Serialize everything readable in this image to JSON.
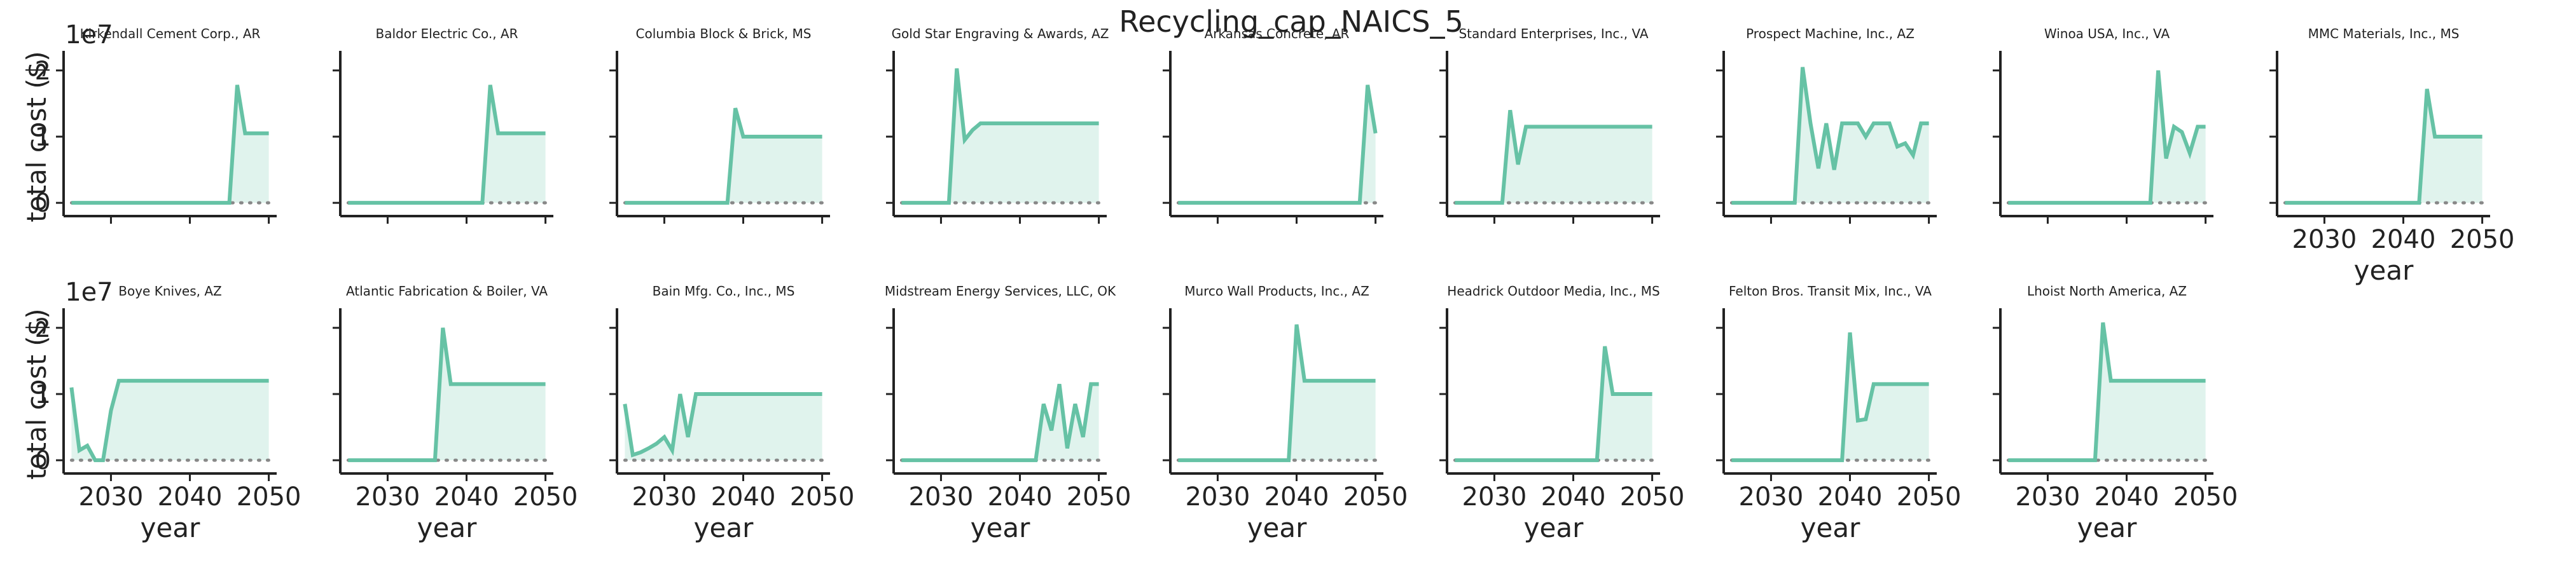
{
  "suptitle": "Recycling_cap_NAICS_5",
  "common": {
    "xlabel": "year",
    "ylabel": "total cost ($)",
    "xlim": [
      2024,
      2051
    ],
    "ylim": [
      -2000000,
      22000000
    ],
    "xticks": [
      "2030",
      "2040",
      "2050"
    ],
    "yticks": [
      "0",
      "1",
      "2"
    ],
    "offset_text": "1e7",
    "color": "#66c2a5",
    "zero_line_color": "#888888"
  },
  "chart_data": [
    {
      "type": "area",
      "title": "Kirkendall Cement Corp., AR",
      "x": [
        2025,
        2026,
        2027,
        2028,
        2029,
        2030,
        2031,
        2032,
        2033,
        2034,
        2035,
        2036,
        2037,
        2038,
        2039,
        2040,
        2041,
        2042,
        2043,
        2044,
        2045,
        2046,
        2047,
        2048,
        2049,
        2050
      ],
      "y": [
        0,
        0,
        0,
        0,
        0,
        0,
        0,
        0,
        0,
        0,
        0,
        0,
        0,
        0,
        0,
        0,
        0,
        0,
        0,
        0,
        0,
        17800000,
        10500000,
        10500000,
        10500000,
        10500000
      ]
    },
    {
      "type": "area",
      "title": "Baldor Electric Co., AR",
      "x": [
        2025,
        2026,
        2027,
        2028,
        2029,
        2030,
        2031,
        2032,
        2033,
        2034,
        2035,
        2036,
        2037,
        2038,
        2039,
        2040,
        2041,
        2042,
        2043,
        2044,
        2045,
        2046,
        2047,
        2048,
        2049,
        2050
      ],
      "y": [
        0,
        0,
        0,
        0,
        0,
        0,
        0,
        0,
        0,
        0,
        0,
        0,
        0,
        0,
        0,
        0,
        0,
        0,
        17800000,
        10500000,
        10500000,
        10500000,
        10500000,
        10500000,
        10500000,
        10500000
      ]
    },
    {
      "type": "area",
      "title": "Columbia Block & Brick, MS",
      "x": [
        2025,
        2026,
        2027,
        2028,
        2029,
        2030,
        2031,
        2032,
        2033,
        2034,
        2035,
        2036,
        2037,
        2038,
        2039,
        2040,
        2041,
        2042,
        2043,
        2044,
        2045,
        2046,
        2047,
        2048,
        2049,
        2050
      ],
      "y": [
        0,
        0,
        0,
        0,
        0,
        0,
        0,
        0,
        0,
        0,
        0,
        0,
        0,
        0,
        14300000,
        10000000,
        10000000,
        10000000,
        10000000,
        10000000,
        10000000,
        10000000,
        10000000,
        10000000,
        10000000,
        10000000
      ]
    },
    {
      "type": "area",
      "title": "Gold Star Engraving & Awards, AZ",
      "x": [
        2025,
        2026,
        2027,
        2028,
        2029,
        2030,
        2031,
        2032,
        2033,
        2034,
        2035,
        2036,
        2037,
        2038,
        2039,
        2040,
        2041,
        2042,
        2043,
        2044,
        2045,
        2046,
        2047,
        2048,
        2049,
        2050
      ],
      "y": [
        0,
        0,
        0,
        0,
        0,
        0,
        0,
        20300000,
        9500000,
        11000000,
        12000000,
        12000000,
        12000000,
        12000000,
        12000000,
        12000000,
        12000000,
        12000000,
        12000000,
        12000000,
        12000000,
        12000000,
        12000000,
        12000000,
        12000000,
        12000000
      ]
    },
    {
      "type": "area",
      "title": "Arkansas Concrete, AR",
      "x": [
        2025,
        2026,
        2027,
        2028,
        2029,
        2030,
        2031,
        2032,
        2033,
        2034,
        2035,
        2036,
        2037,
        2038,
        2039,
        2040,
        2041,
        2042,
        2043,
        2044,
        2045,
        2046,
        2047,
        2048,
        2049,
        2050
      ],
      "y": [
        0,
        0,
        0,
        0,
        0,
        0,
        0,
        0,
        0,
        0,
        0,
        0,
        0,
        0,
        0,
        0,
        0,
        0,
        0,
        0,
        0,
        0,
        0,
        0,
        17800000,
        10500000
      ]
    },
    {
      "type": "area",
      "title": "Standard Enterprises, Inc., VA",
      "x": [
        2025,
        2026,
        2027,
        2028,
        2029,
        2030,
        2031,
        2032,
        2033,
        2034,
        2035,
        2036,
        2037,
        2038,
        2039,
        2040,
        2041,
        2042,
        2043,
        2044,
        2045,
        2046,
        2047,
        2048,
        2049,
        2050
      ],
      "y": [
        0,
        0,
        0,
        0,
        0,
        0,
        0,
        14000000,
        5800000,
        11500000,
        11500000,
        11500000,
        11500000,
        11500000,
        11500000,
        11500000,
        11500000,
        11500000,
        11500000,
        11500000,
        11500000,
        11500000,
        11500000,
        11500000,
        11500000,
        11500000
      ]
    },
    {
      "type": "area",
      "title": "Prospect Machine, Inc., AZ",
      "x": [
        2025,
        2026,
        2027,
        2028,
        2029,
        2030,
        2031,
        2032,
        2033,
        2034,
        2035,
        2036,
        2037,
        2038,
        2039,
        2040,
        2041,
        2042,
        2043,
        2044,
        2045,
        2046,
        2047,
        2048,
        2049,
        2050
      ],
      "y": [
        0,
        0,
        0,
        0,
        0,
        0,
        0,
        0,
        0,
        20500000,
        12000000,
        5200000,
        12000000,
        5000000,
        12000000,
        12000000,
        12000000,
        10000000,
        12000000,
        12000000,
        12000000,
        8500000,
        9000000,
        7200000,
        12000000,
        12000000
      ]
    },
    {
      "type": "area",
      "title": "Winoa USA, Inc., VA",
      "x": [
        2025,
        2026,
        2027,
        2028,
        2029,
        2030,
        2031,
        2032,
        2033,
        2034,
        2035,
        2036,
        2037,
        2038,
        2039,
        2040,
        2041,
        2042,
        2043,
        2044,
        2045,
        2046,
        2047,
        2048,
        2049,
        2050
      ],
      "y": [
        0,
        0,
        0,
        0,
        0,
        0,
        0,
        0,
        0,
        0,
        0,
        0,
        0,
        0,
        0,
        0,
        0,
        0,
        0,
        20000000,
        6700000,
        11500000,
        10700000,
        7500000,
        11500000,
        11500000
      ]
    },
    {
      "type": "area",
      "title": "MMC Materials, Inc., MS",
      "x": [
        2025,
        2026,
        2027,
        2028,
        2029,
        2030,
        2031,
        2032,
        2033,
        2034,
        2035,
        2036,
        2037,
        2038,
        2039,
        2040,
        2041,
        2042,
        2043,
        2044,
        2045,
        2046,
        2047,
        2048,
        2049,
        2050
      ],
      "y": [
        0,
        0,
        0,
        0,
        0,
        0,
        0,
        0,
        0,
        0,
        0,
        0,
        0,
        0,
        0,
        0,
        0,
        0,
        17200000,
        10000000,
        10000000,
        10000000,
        10000000,
        10000000,
        10000000,
        10000000
      ]
    },
    {
      "type": "area",
      "title": "Boye Knives, AZ",
      "x": [
        2025,
        2026,
        2027,
        2028,
        2029,
        2030,
        2031,
        2032,
        2033,
        2034,
        2035,
        2036,
        2037,
        2038,
        2039,
        2040,
        2041,
        2042,
        2043,
        2044,
        2045,
        2046,
        2047,
        2048,
        2049,
        2050
      ],
      "y": [
        11000000,
        1500000,
        2200000,
        0,
        0,
        7500000,
        12000000,
        12000000,
        12000000,
        12000000,
        12000000,
        12000000,
        12000000,
        12000000,
        12000000,
        12000000,
        12000000,
        12000000,
        12000000,
        12000000,
        12000000,
        12000000,
        12000000,
        12000000,
        12000000,
        12000000
      ]
    },
    {
      "type": "area",
      "title": "Atlantic Fabrication & Boiler, VA",
      "x": [
        2025,
        2026,
        2027,
        2028,
        2029,
        2030,
        2031,
        2032,
        2033,
        2034,
        2035,
        2036,
        2037,
        2038,
        2039,
        2040,
        2041,
        2042,
        2043,
        2044,
        2045,
        2046,
        2047,
        2048,
        2049,
        2050
      ],
      "y": [
        0,
        0,
        0,
        0,
        0,
        0,
        0,
        0,
        0,
        0,
        0,
        0,
        20000000,
        11500000,
        11500000,
        11500000,
        11500000,
        11500000,
        11500000,
        11500000,
        11500000,
        11500000,
        11500000,
        11500000,
        11500000,
        11500000
      ]
    },
    {
      "type": "area",
      "title": "Bain Mfg. Co., Inc., MS",
      "x": [
        2025,
        2026,
        2027,
        2028,
        2029,
        2030,
        2031,
        2032,
        2033,
        2034,
        2035,
        2036,
        2037,
        2038,
        2039,
        2040,
        2041,
        2042,
        2043,
        2044,
        2045,
        2046,
        2047,
        2048,
        2049,
        2050
      ],
      "y": [
        8500000,
        800000,
        1200000,
        1800000,
        2500000,
        3500000,
        1500000,
        10000000,
        3500000,
        10000000,
        10000000,
        10000000,
        10000000,
        10000000,
        10000000,
        10000000,
        10000000,
        10000000,
        10000000,
        10000000,
        10000000,
        10000000,
        10000000,
        10000000,
        10000000,
        10000000
      ]
    },
    {
      "type": "area",
      "title": "Midstream Energy Services, LLC, OK",
      "x": [
        2025,
        2026,
        2027,
        2028,
        2029,
        2030,
        2031,
        2032,
        2033,
        2034,
        2035,
        2036,
        2037,
        2038,
        2039,
        2040,
        2041,
        2042,
        2043,
        2044,
        2045,
        2046,
        2047,
        2048,
        2049,
        2050
      ],
      "y": [
        0,
        0,
        0,
        0,
        0,
        0,
        0,
        0,
        0,
        0,
        0,
        0,
        0,
        0,
        0,
        0,
        0,
        0,
        8500000,
        4500000,
        11500000,
        1800000,
        8500000,
        3500000,
        11500000,
        11500000
      ]
    },
    {
      "type": "area",
      "title": "Murco Wall Products, Inc., AZ",
      "x": [
        2025,
        2026,
        2027,
        2028,
        2029,
        2030,
        2031,
        2032,
        2033,
        2034,
        2035,
        2036,
        2037,
        2038,
        2039,
        2040,
        2041,
        2042,
        2043,
        2044,
        2045,
        2046,
        2047,
        2048,
        2049,
        2050
      ],
      "y": [
        0,
        0,
        0,
        0,
        0,
        0,
        0,
        0,
        0,
        0,
        0,
        0,
        0,
        0,
        0,
        20500000,
        12000000,
        12000000,
        12000000,
        12000000,
        12000000,
        12000000,
        12000000,
        12000000,
        12000000,
        12000000
      ]
    },
    {
      "type": "area",
      "title": "Headrick Outdoor Media, Inc., MS",
      "x": [
        2025,
        2026,
        2027,
        2028,
        2029,
        2030,
        2031,
        2032,
        2033,
        2034,
        2035,
        2036,
        2037,
        2038,
        2039,
        2040,
        2041,
        2042,
        2043,
        2044,
        2045,
        2046,
        2047,
        2048,
        2049,
        2050
      ],
      "y": [
        0,
        0,
        0,
        0,
        0,
        0,
        0,
        0,
        0,
        0,
        0,
        0,
        0,
        0,
        0,
        0,
        0,
        0,
        0,
        17200000,
        10000000,
        10000000,
        10000000,
        10000000,
        10000000,
        10000000
      ]
    },
    {
      "type": "area",
      "title": "Felton Bros. Transit Mix, Inc., VA",
      "x": [
        2025,
        2026,
        2027,
        2028,
        2029,
        2030,
        2031,
        2032,
        2033,
        2034,
        2035,
        2036,
        2037,
        2038,
        2039,
        2040,
        2041,
        2042,
        2043,
        2044,
        2045,
        2046,
        2047,
        2048,
        2049,
        2050
      ],
      "y": [
        0,
        0,
        0,
        0,
        0,
        0,
        0,
        0,
        0,
        0,
        0,
        0,
        0,
        0,
        0,
        19300000,
        6000000,
        6200000,
        11500000,
        11500000,
        11500000,
        11500000,
        11500000,
        11500000,
        11500000,
        11500000
      ]
    },
    {
      "type": "area",
      "title": "Lhoist North America, AZ",
      "x": [
        2025,
        2026,
        2027,
        2028,
        2029,
        2030,
        2031,
        2032,
        2033,
        2034,
        2035,
        2036,
        2037,
        2038,
        2039,
        2040,
        2041,
        2042,
        2043,
        2044,
        2045,
        2046,
        2047,
        2048,
        2049,
        2050
      ],
      "y": [
        0,
        0,
        0,
        0,
        0,
        0,
        0,
        0,
        0,
        0,
        0,
        0,
        20800000,
        12000000,
        12000000,
        12000000,
        12000000,
        12000000,
        12000000,
        12000000,
        12000000,
        12000000,
        12000000,
        12000000,
        12000000,
        12000000
      ]
    }
  ]
}
